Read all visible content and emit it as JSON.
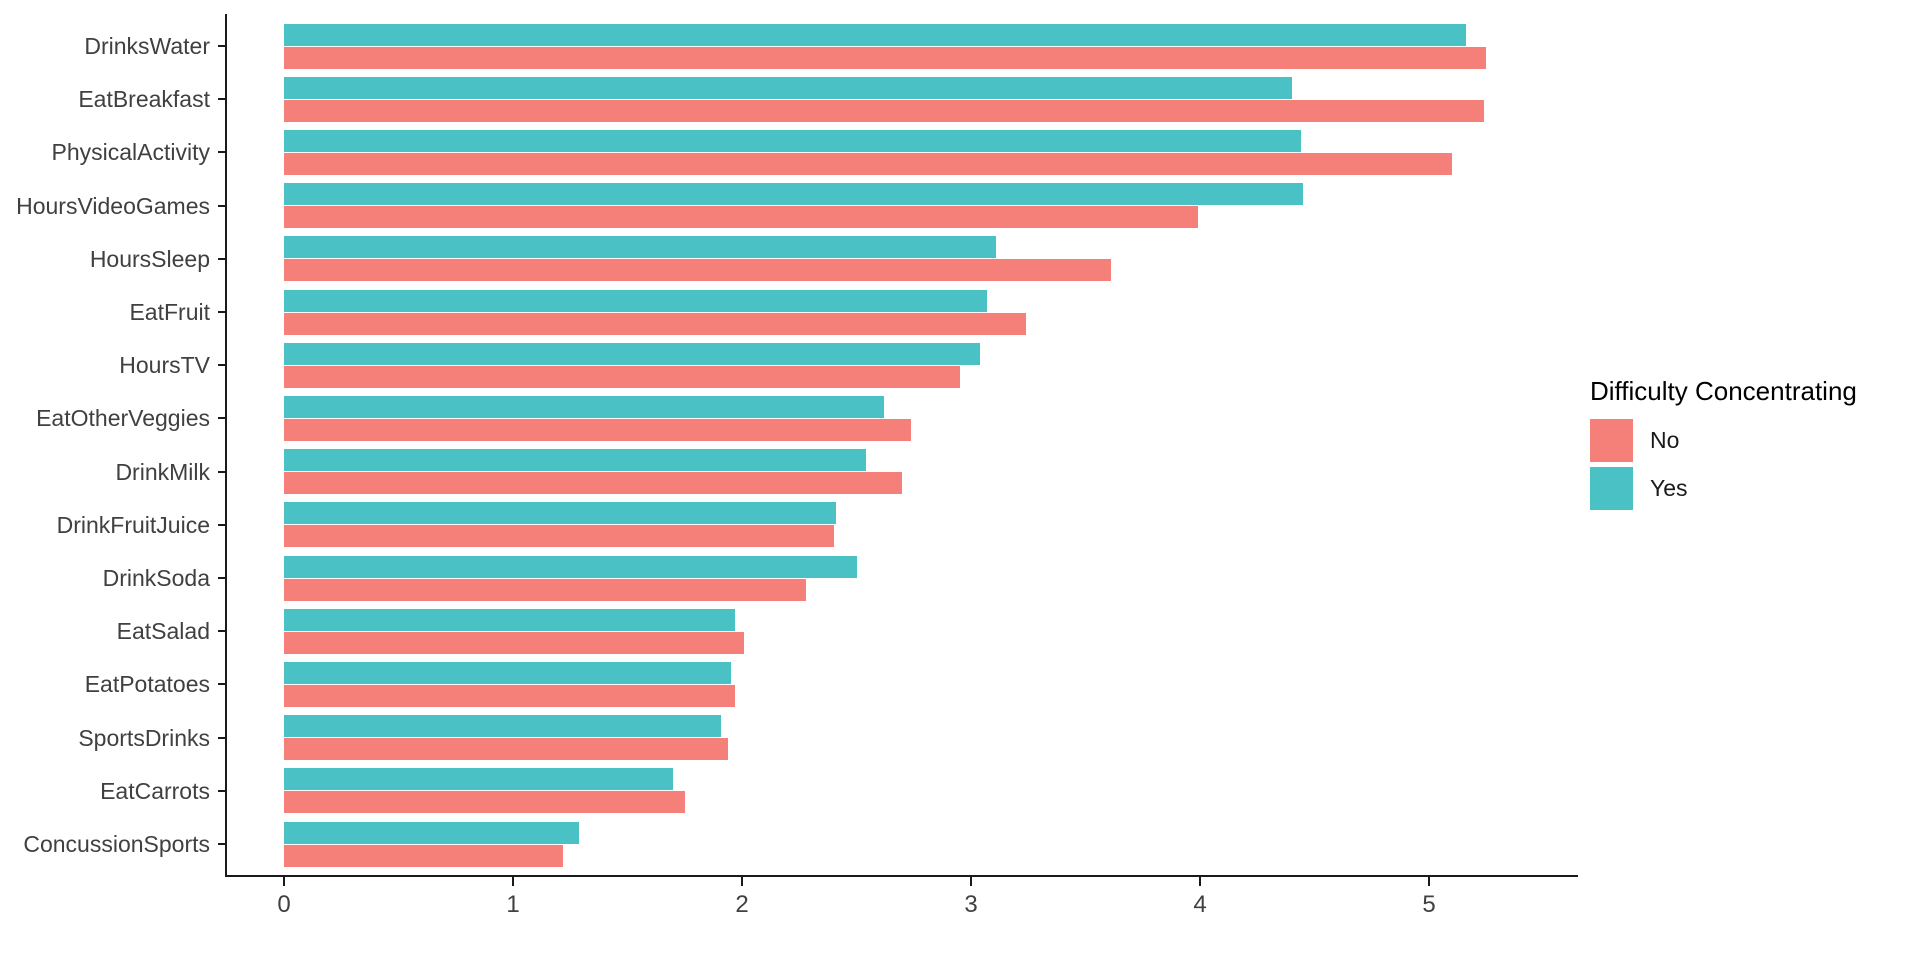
{
  "chart_data": {
    "type": "bar",
    "orientation": "horizontal",
    "title": "",
    "xlabel": "",
    "ylabel": "",
    "categories": [
      "DrinksWater",
      "EatBreakfast",
      "PhysicalActivity",
      "HoursVideoGames",
      "HoursSleep",
      "EatFruit",
      "HoursTV",
      "EatOtherVeggies",
      "DrinkMilk",
      "DrinkFruitJuice",
      "DrinkSoda",
      "EatSalad",
      "EatPotatoes",
      "SportsDrinks",
      "EatCarrots",
      "ConcussionSports"
    ],
    "series": [
      {
        "name": "No",
        "color": "#F5807A",
        "values": [
          5.25,
          5.24,
          5.1,
          3.99,
          3.61,
          3.24,
          2.95,
          2.74,
          2.7,
          2.4,
          2.28,
          2.01,
          1.97,
          1.94,
          1.75,
          1.22
        ]
      },
      {
        "name": "Yes",
        "color": "#4AC2C5",
        "values": [
          5.16,
          4.4,
          4.44,
          4.45,
          3.11,
          3.07,
          3.04,
          2.62,
          2.54,
          2.41,
          2.5,
          1.97,
          1.95,
          1.91,
          1.7,
          1.29
        ]
      }
    ],
    "bar_order_within_group_top_to_bottom": [
      "Yes",
      "No"
    ],
    "x_ticks": [
      "0",
      "1",
      "2",
      "3",
      "4",
      "5"
    ],
    "xlim": [
      0,
      5.66
    ],
    "grid": false,
    "legend": {
      "title": "Difficulty Concentrating",
      "position": "right"
    }
  },
  "colors": {
    "axis_line": "#1a1a1a",
    "axis_text": "#404040",
    "legend_text": "#000000",
    "background": "#ffffff"
  }
}
